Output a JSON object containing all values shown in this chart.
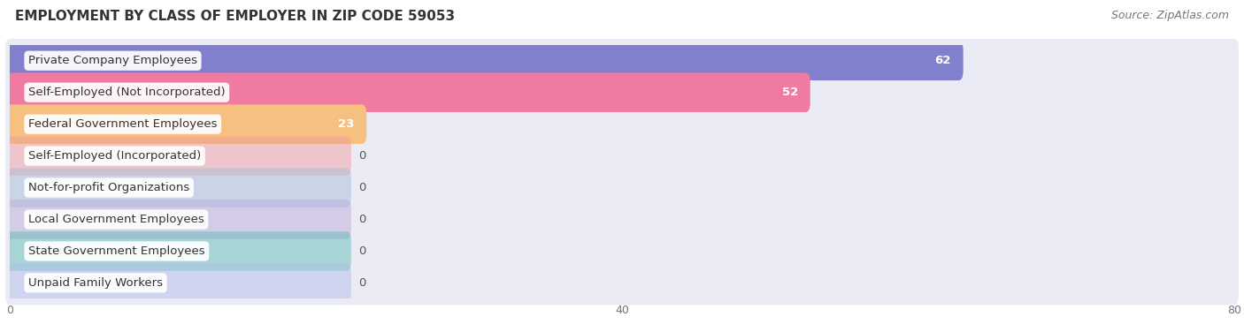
{
  "title": "EMPLOYMENT BY CLASS OF EMPLOYER IN ZIP CODE 59053",
  "source": "Source: ZipAtlas.com",
  "categories": [
    "Private Company Employees",
    "Self-Employed (Not Incorporated)",
    "Federal Government Employees",
    "Self-Employed (Incorporated)",
    "Not-for-profit Organizations",
    "Local Government Employees",
    "State Government Employees",
    "Unpaid Family Workers"
  ],
  "values": [
    62,
    52,
    23,
    0,
    0,
    0,
    0,
    0
  ],
  "bar_colors": [
    "#8080cc",
    "#f07aa0",
    "#f5c080",
    "#f09898",
    "#a0bcd8",
    "#b8a8d8",
    "#55b8b0",
    "#b0bce8"
  ],
  "bar_row_bg": "#ebebf5",
  "xlim_max": 80,
  "xticks": [
    0,
    40,
    80
  ],
  "background_color": "#ffffff",
  "title_fontsize": 11,
  "source_fontsize": 9,
  "label_fontsize": 9.5,
  "value_fontsize": 9.5
}
